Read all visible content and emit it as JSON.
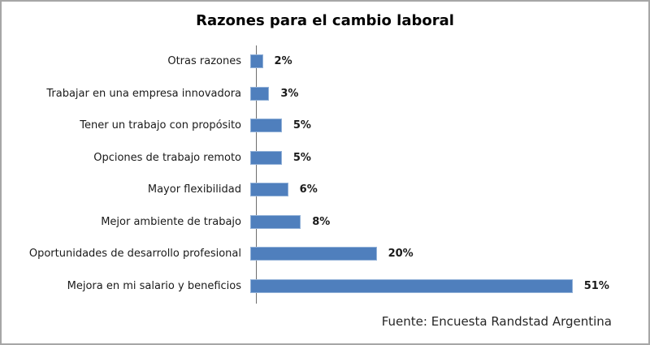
{
  "chart_data": {
    "type": "bar",
    "orientation": "horizontal",
    "title": "Razones para el cambio laboral",
    "categories": [
      "Otras razones",
      "Trabajar en una empresa innovadora",
      "Tener un trabajo con propósito",
      "Opciones de trabajo remoto",
      "Mayor flexibilidad",
      "Mejor ambiente de trabajo",
      "Oportunidades de desarrollo profesional",
      "Mejora en mi salario y beneficios"
    ],
    "values": [
      2,
      3,
      5,
      5,
      6,
      8,
      20,
      51
    ],
    "value_labels": [
      "2%",
      "3%",
      "5%",
      "5%",
      "6%",
      "8%",
      "20%",
      "51%"
    ],
    "xlabel": "",
    "ylabel": "",
    "xlim": [
      0,
      55
    ],
    "grid": false,
    "legend": false,
    "bar_color": "#4f7fbd",
    "bar_border_color": "#92b1d8",
    "axis_line_color": "#6e6e6e"
  },
  "source_note": "Fuente: Encuesta Randstad Argentina"
}
